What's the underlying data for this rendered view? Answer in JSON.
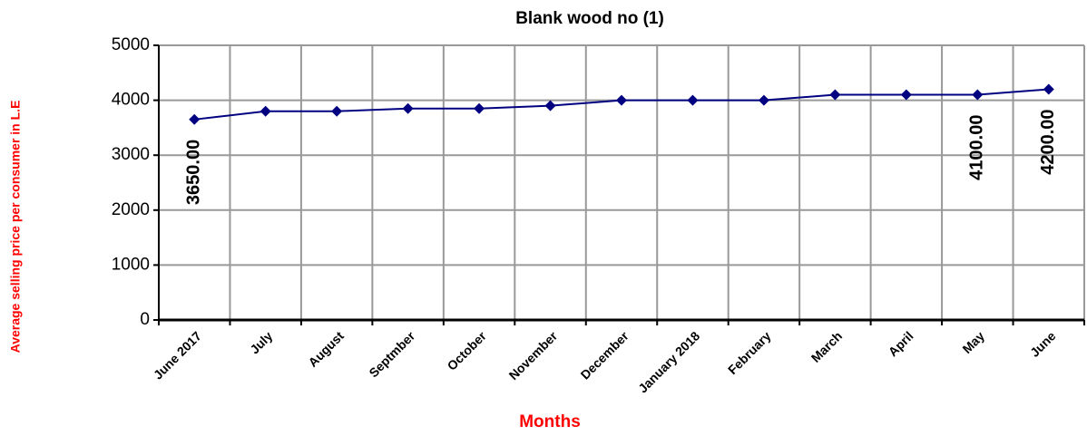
{
  "chart_data": {
    "type": "line",
    "title": "Blank wood no (1)",
    "x_label": "Months",
    "y_label": "Average selling price per consumer in L.E",
    "categories": [
      "June 2017",
      "July",
      "August",
      "Septmber",
      "October",
      "November",
      "December",
      "January 2018",
      "February",
      "March",
      "April",
      "May",
      "June"
    ],
    "series": [
      {
        "name": "Blank wood no (1)",
        "color": "#000080",
        "values": [
          3650,
          3800,
          3800,
          3850,
          3850,
          3900,
          4000,
          4000,
          4000,
          4100,
          4100,
          4100,
          4200
        ],
        "value_labels": [
          "3650.00",
          null,
          null,
          null,
          null,
          null,
          null,
          null,
          null,
          null,
          null,
          "4100.00",
          "4200.00"
        ]
      }
    ],
    "ylim": [
      0,
      5000
    ],
    "yticks": [
      0,
      1000,
      2000,
      3000,
      4000,
      5000
    ],
    "grid": true
  }
}
